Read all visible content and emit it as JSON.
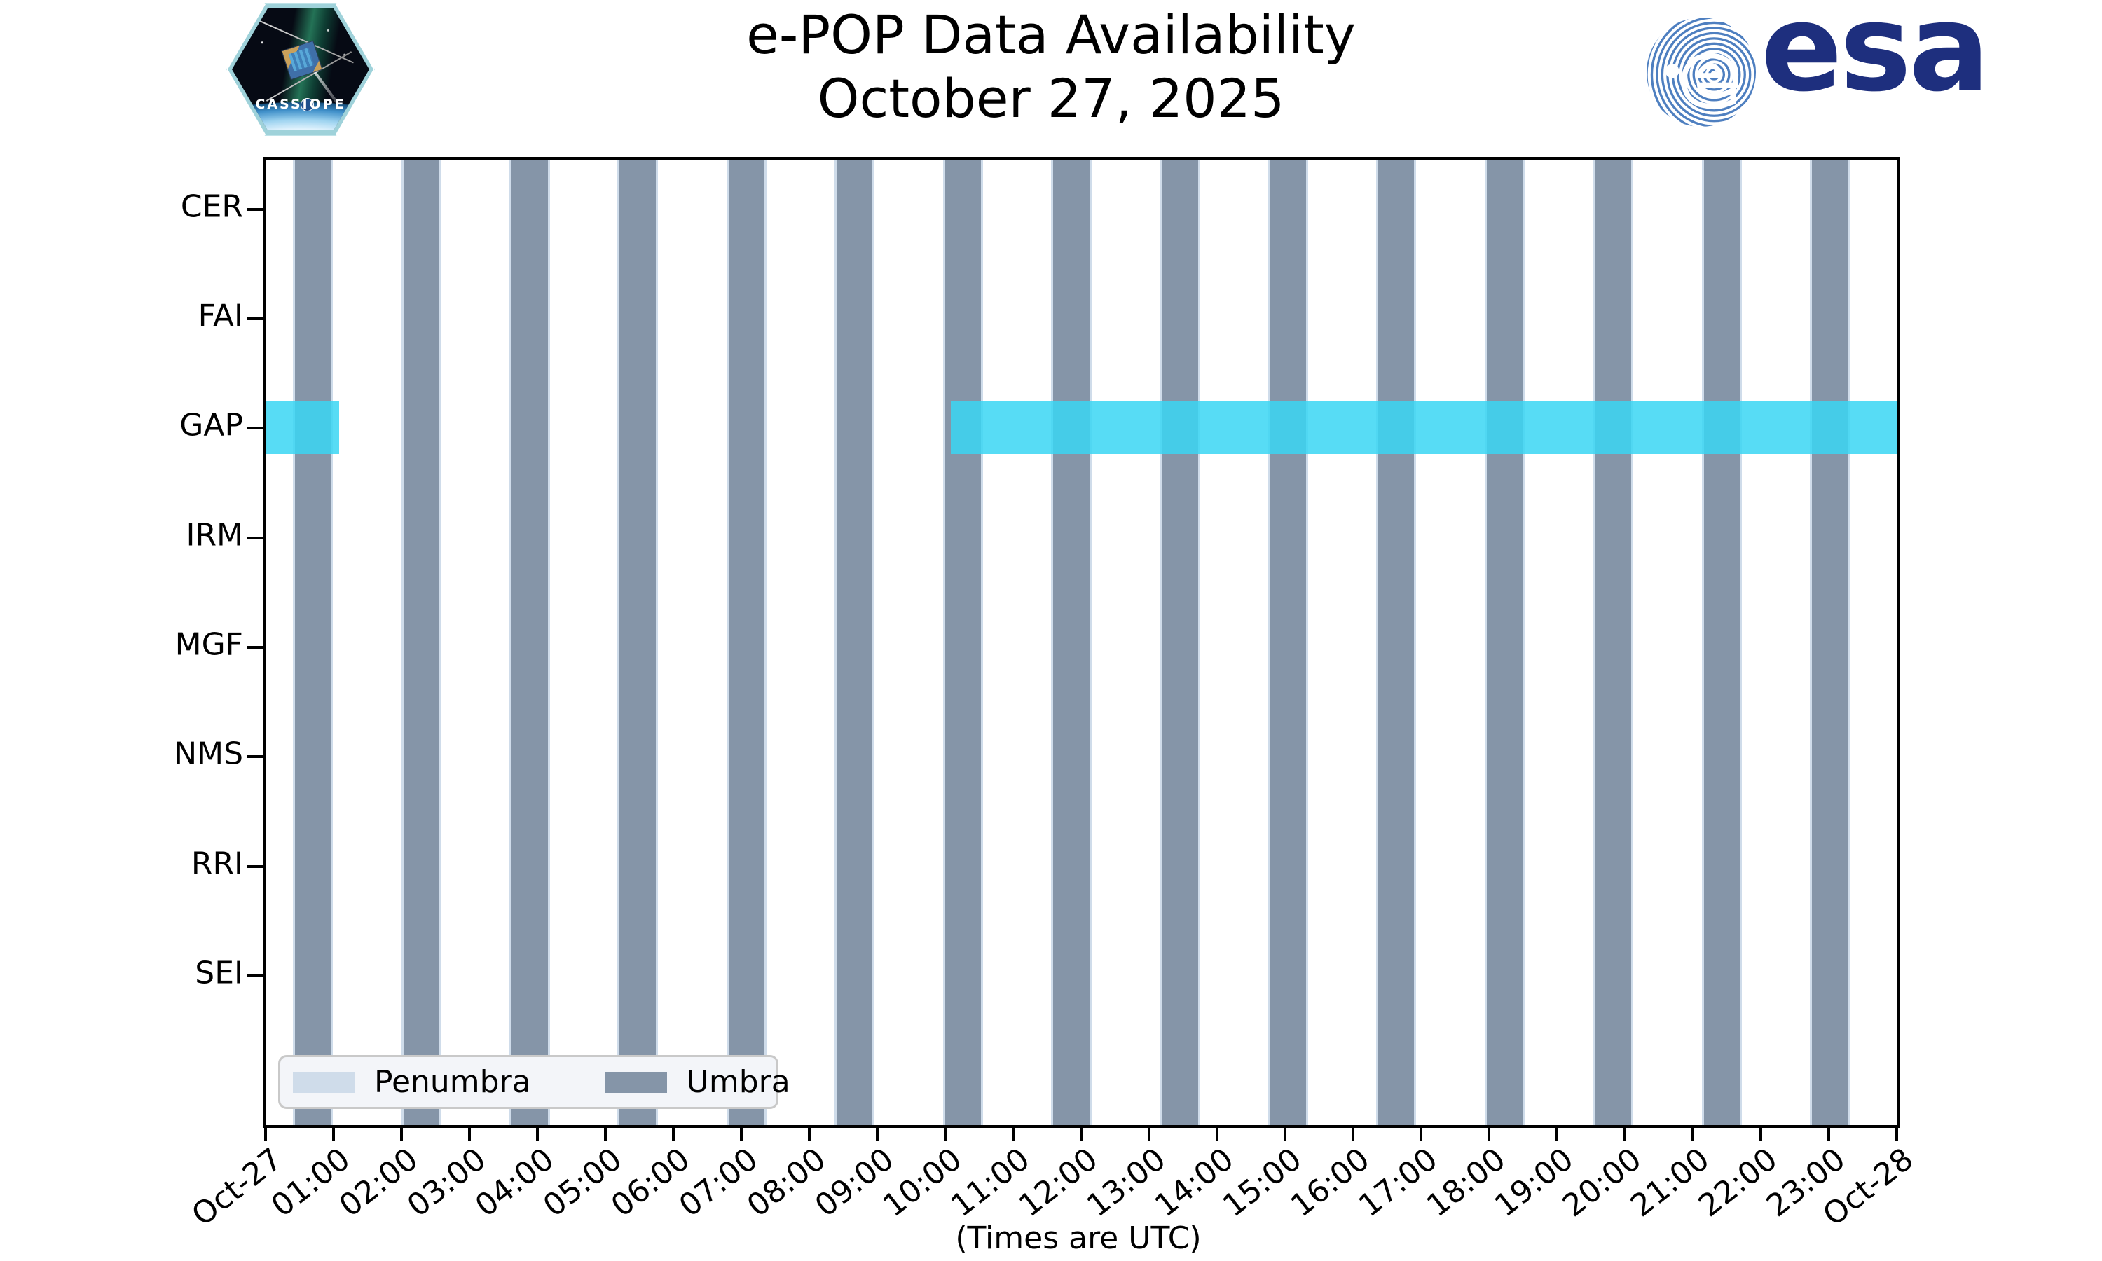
{
  "header": {
    "title_line1": "e-POP Data Availability",
    "title_line2": "October 27, 2025"
  },
  "branding": {
    "cassiope_patch_label": "CASSIOPE",
    "esa_logo_text": "esa",
    "esa_navy_color": "#1e2f7e",
    "esa_swirl_blue_color": "#4e7fc0"
  },
  "chart_data": {
    "type": "timeline",
    "title": "e-POP Data Availability October 27, 2025",
    "rows": [
      "CER",
      "FAI",
      "GAP",
      "IRM",
      "MGF",
      "NMS",
      "RRI",
      "SEI"
    ],
    "x_tick_labels": [
      "Oct-27",
      "01:00",
      "02:00",
      "03:00",
      "04:00",
      "05:00",
      "06:00",
      "07:00",
      "08:00",
      "09:00",
      "10:00",
      "11:00",
      "12:00",
      "13:00",
      "14:00",
      "15:00",
      "16:00",
      "17:00",
      "18:00",
      "19:00",
      "20:00",
      "21:00",
      "22:00",
      "23:00",
      "Oct-28"
    ],
    "x_axis_note": "(Times are UTC)",
    "x_range_hours": [
      0,
      24
    ],
    "grid": false,
    "legend_position": "lower left",
    "umbra_intervals_hours": [
      [
        0.43,
        0.96
      ],
      [
        2.03,
        2.56
      ],
      [
        3.62,
        4.15
      ],
      [
        5.21,
        5.74
      ],
      [
        6.81,
        7.34
      ],
      [
        8.4,
        8.93
      ],
      [
        10.0,
        10.53
      ],
      [
        11.59,
        12.12
      ],
      [
        13.19,
        13.72
      ],
      [
        14.78,
        15.31
      ],
      [
        16.37,
        16.9
      ],
      [
        17.97,
        18.5
      ],
      [
        19.56,
        20.09
      ],
      [
        21.16,
        21.69
      ],
      [
        22.75,
        23.28
      ]
    ],
    "availability_row": "GAP",
    "availability_intervals_hours": [
      [
        0.0,
        1.08
      ],
      [
        10.08,
        24.0
      ]
    ],
    "legend": {
      "entries": [
        {
          "label": "Penumbra",
          "color": "#cfdcea"
        },
        {
          "label": "Umbra",
          "color": "#8595a8"
        }
      ]
    },
    "colors": {
      "umbra": "#8595a8",
      "penumbra": "#cfdcea",
      "availability": "rgba(58,214,243,0.85)"
    }
  }
}
